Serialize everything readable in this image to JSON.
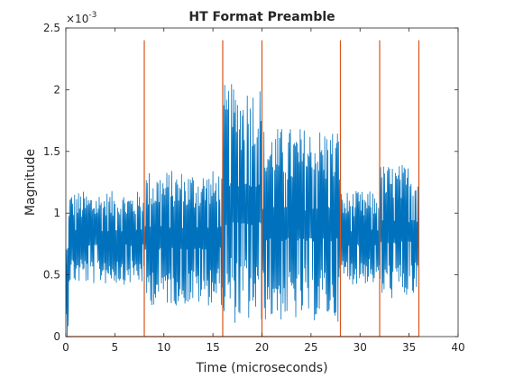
{
  "chart_data": {
    "type": "line",
    "title": "HT Format Preamble",
    "xlabel": "Time (microseconds)",
    "ylabel": "Magnitude",
    "y_exponent_label": "×10",
    "y_exponent_power": "-3",
    "xlim": [
      0,
      40
    ],
    "ylim": [
      0,
      0.0025
    ],
    "x_ticks": [
      0,
      5,
      10,
      15,
      20,
      25,
      30,
      35,
      40
    ],
    "x_tick_labels": [
      "0",
      "5",
      "10",
      "15",
      "20",
      "25",
      "30",
      "35",
      "40"
    ],
    "y_ticks": [
      0,
      0.0005,
      0.001,
      0.0015,
      0.002,
      0.0025
    ],
    "y_tick_labels": [
      "0",
      "0.5",
      "1",
      "1.5",
      "2",
      "2.5"
    ],
    "grid": false,
    "legend": "none",
    "colors": {
      "signal": "#0072BD",
      "markers": "#D95319"
    },
    "series": [
      {
        "kind": "noisy-magnitude",
        "color": "#0072BD",
        "segments": [
          {
            "x_start": 0.0,
            "x_end": 0.3,
            "min": 0.0,
            "max": 0.0008
          },
          {
            "x_start": 0.3,
            "x_end": 8.0,
            "min": 0.00042,
            "max": 0.00118
          },
          {
            "x_start": 8.0,
            "x_end": 16.0,
            "min": 0.00025,
            "max": 0.00135
          },
          {
            "x_start": 16.0,
            "x_end": 20.0,
            "min": 0.0001,
            "max": 0.00205
          },
          {
            "x_start": 20.0,
            "x_end": 28.0,
            "min": 0.00012,
            "max": 0.0017
          },
          {
            "x_start": 28.0,
            "x_end": 32.0,
            "min": 0.00042,
            "max": 0.00118
          },
          {
            "x_start": 32.0,
            "x_end": 36.0,
            "min": 0.0003,
            "max": 0.0014
          }
        ]
      },
      {
        "kind": "boundary-markers",
        "color": "#D95319",
        "x": [
          8,
          16,
          20,
          28,
          32,
          36
        ],
        "peak": 0.0024
      }
    ]
  }
}
